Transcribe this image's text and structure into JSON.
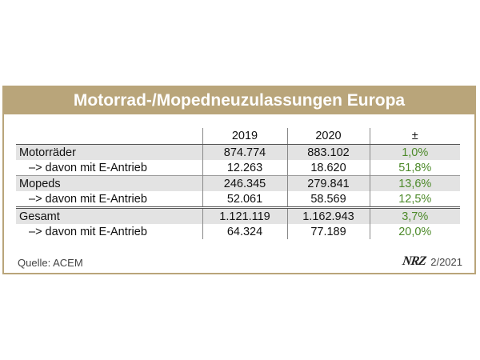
{
  "title": "Motorrad-/Mopedneuzulassungen Europa",
  "table": {
    "headers": [
      "",
      "2019",
      "2020",
      "±"
    ],
    "rows": [
      {
        "label": "Motorräder",
        "y2019": "874.774",
        "y2020": "883.102",
        "change": "1,0%"
      },
      {
        "label": "–> davon mit E-Antrieb",
        "y2019": "12.263",
        "y2020": "18.620",
        "change": "51,8%"
      },
      {
        "label": "Mopeds",
        "y2019": "246.345",
        "y2020": "279.841",
        "change": "13,6%"
      },
      {
        "label": "–> davon mit E-Antrieb",
        "y2019": "52.061",
        "y2020": "58.569",
        "change": "12,5%"
      },
      {
        "label": "Gesamt",
        "y2019": "1.121.119",
        "y2020": "1.162.943",
        "change": "3,7%"
      },
      {
        "label": "–> davon mit E-Antrieb",
        "y2019": "64.324",
        "y2020": "77.189",
        "change": "20,0%"
      }
    ]
  },
  "footer": {
    "source": "Quelle: ACEM",
    "logo": "NRZ",
    "issue": "2/2021"
  },
  "colors": {
    "accent": "#b9a57a",
    "positive": "#4d8a2a",
    "row_shade": "#e3e3e3"
  }
}
